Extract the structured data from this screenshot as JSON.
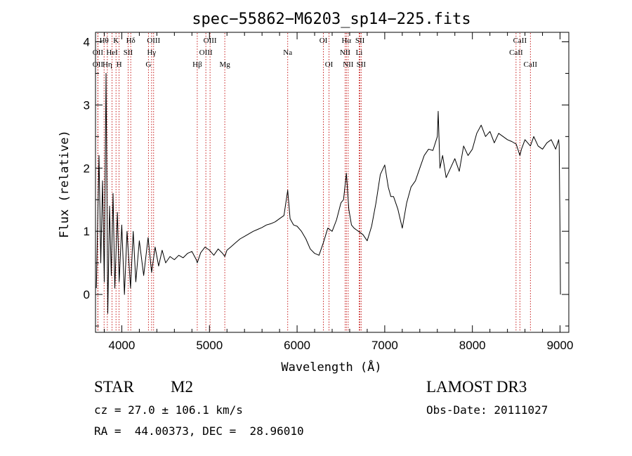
{
  "chart_data": {
    "type": "line",
    "title": "spec−55862−M6203_sp14−225.fits",
    "xlabel": "Wavelength (Å)",
    "ylabel": "Flux (relative)",
    "xlim": [
      3700,
      9100
    ],
    "ylim": [
      -0.6,
      4.15
    ],
    "x_ticks": [
      4000,
      5000,
      6000,
      7000,
      8000,
      9000
    ],
    "x_tick_labels": [
      "4000",
      "5000",
      "6000",
      "7000",
      "8000",
      "9000"
    ],
    "y_ticks": [
      0,
      1,
      2,
      3,
      4
    ],
    "y_tick_labels": [
      "0",
      "1",
      "2",
      "3",
      "4"
    ],
    "grid": false,
    "series": [
      {
        "name": "spectrum",
        "x": [
          3710,
          3740,
          3760,
          3780,
          3800,
          3820,
          3840,
          3860,
          3880,
          3900,
          3920,
          3950,
          3970,
          4000,
          4030,
          4060,
          4100,
          4130,
          4160,
          4200,
          4250,
          4300,
          4340,
          4380,
          4420,
          4460,
          4500,
          4550,
          4600,
          4650,
          4700,
          4750,
          4800,
          4850,
          4861,
          4900,
          4950,
          5000,
          5050,
          5100,
          5150,
          5175,
          5200,
          5250,
          5300,
          5350,
          5400,
          5450,
          5500,
          5550,
          5600,
          5650,
          5700,
          5750,
          5800,
          5850,
          5893,
          5920,
          5960,
          6000,
          6050,
          6100,
          6150,
          6200,
          6250,
          6300,
          6350,
          6400,
          6450,
          6500,
          6530,
          6563,
          6590,
          6620,
          6650,
          6700,
          6750,
          6800,
          6850,
          6900,
          6950,
          7000,
          7040,
          7070,
          7100,
          7150,
          7200,
          7250,
          7300,
          7350,
          7400,
          7450,
          7500,
          7550,
          7600,
          7610,
          7630,
          7660,
          7700,
          7750,
          7800,
          7850,
          7900,
          7950,
          8000,
          8050,
          8100,
          8150,
          8200,
          8250,
          8300,
          8350,
          8400,
          8450,
          8500,
          8542,
          8560,
          8600,
          8662,
          8700,
          8750,
          8800,
          8850,
          8900,
          8950,
          8985,
          8990,
          9000,
          9005
        ],
        "y": [
          0.1,
          2.2,
          0.5,
          1.8,
          0.2,
          3.5,
          -0.3,
          1.4,
          0.3,
          1.6,
          0.1,
          1.3,
          0.2,
          1.1,
          0.0,
          1.0,
          0.1,
          1.0,
          0.2,
          0.85,
          0.3,
          0.9,
          0.35,
          0.75,
          0.45,
          0.7,
          0.5,
          0.6,
          0.55,
          0.62,
          0.58,
          0.65,
          0.68,
          0.55,
          0.5,
          0.66,
          0.75,
          0.7,
          0.62,
          0.72,
          0.65,
          0.6,
          0.7,
          0.76,
          0.82,
          0.88,
          0.92,
          0.96,
          1.0,
          1.03,
          1.06,
          1.1,
          1.12,
          1.15,
          1.2,
          1.25,
          1.65,
          1.2,
          1.1,
          1.08,
          1.0,
          0.88,
          0.72,
          0.65,
          0.62,
          0.82,
          1.05,
          1.0,
          1.18,
          1.45,
          1.5,
          1.92,
          1.35,
          1.1,
          1.05,
          1.0,
          0.95,
          0.85,
          1.08,
          1.45,
          1.9,
          2.05,
          1.7,
          1.55,
          1.55,
          1.35,
          1.05,
          1.45,
          1.7,
          1.8,
          2.0,
          2.2,
          2.3,
          2.28,
          2.5,
          2.9,
          2.0,
          2.2,
          1.85,
          2.0,
          2.15,
          1.95,
          2.35,
          2.2,
          2.3,
          2.55,
          2.68,
          2.5,
          2.58,
          2.4,
          2.55,
          2.5,
          2.45,
          2.42,
          2.38,
          2.2,
          2.3,
          2.45,
          2.35,
          2.5,
          2.35,
          2.3,
          2.4,
          2.45,
          2.3,
          2.45,
          2.35,
          1.0,
          0.0
        ]
      }
    ],
    "lines": [
      {
        "label": "Hθ",
        "x": 3798,
        "row": 1
      },
      {
        "label": "OII",
        "x": 3727,
        "row": 2
      },
      {
        "label": "OII",
        "x": 3727,
        "row": 3
      },
      {
        "label": "Hη",
        "x": 3835,
        "row": 3
      },
      {
        "label": "K",
        "x": 3934,
        "row": 1
      },
      {
        "label": "HeI",
        "x": 3889,
        "row": 2
      },
      {
        "label": "H",
        "x": 3969,
        "row": 3
      },
      {
        "label": "SII",
        "x": 4072,
        "row": 2
      },
      {
        "label": "Hδ",
        "x": 4102,
        "row": 1
      },
      {
        "label": "OIII",
        "x": 4363,
        "row": 1
      },
      {
        "label": "Hγ",
        "x": 4340,
        "row": 2
      },
      {
        "label": "G",
        "x": 4304,
        "row": 3
      },
      {
        "label": "Hβ",
        "x": 4861,
        "row": 3
      },
      {
        "label": "OIII",
        "x": 4959,
        "row": 2
      },
      {
        "label": "OIII",
        "x": 5007,
        "row": 1
      },
      {
        "label": "Mg",
        "x": 5175,
        "row": 3
      },
      {
        "label": "Na",
        "x": 5893,
        "row": 2
      },
      {
        "label": "OI",
        "x": 6300,
        "row": 1
      },
      {
        "label": "OI",
        "x": 6364,
        "row": 3
      },
      {
        "label": "Hα",
        "x": 6563,
        "row": 1
      },
      {
        "label": "NII",
        "x": 6548,
        "row": 2
      },
      {
        "label": "NII",
        "x": 6583,
        "row": 3
      },
      {
        "label": "SII",
        "x": 6717,
        "row": 1
      },
      {
        "label": "Li",
        "x": 6708,
        "row": 2
      },
      {
        "label": "SII",
        "x": 6731,
        "row": 3
      },
      {
        "label": "CaII",
        "x": 8542,
        "row": 1
      },
      {
        "label": "CaII",
        "x": 8498,
        "row": 2
      },
      {
        "label": "CaII",
        "x": 8662,
        "row": 3
      }
    ]
  },
  "footer": {
    "object_class": "STAR",
    "subclass": "M2",
    "survey": "LAMOST DR3",
    "redshift": "cz = 27.0 ± 106.1 km/s",
    "obs_date": "Obs-Date: 20111027",
    "coords": "RA =  44.00373, DEC =  28.96010"
  },
  "colors": {
    "line_marker": "#c00000",
    "spectrum": "#000000",
    "axes": "#000000"
  }
}
